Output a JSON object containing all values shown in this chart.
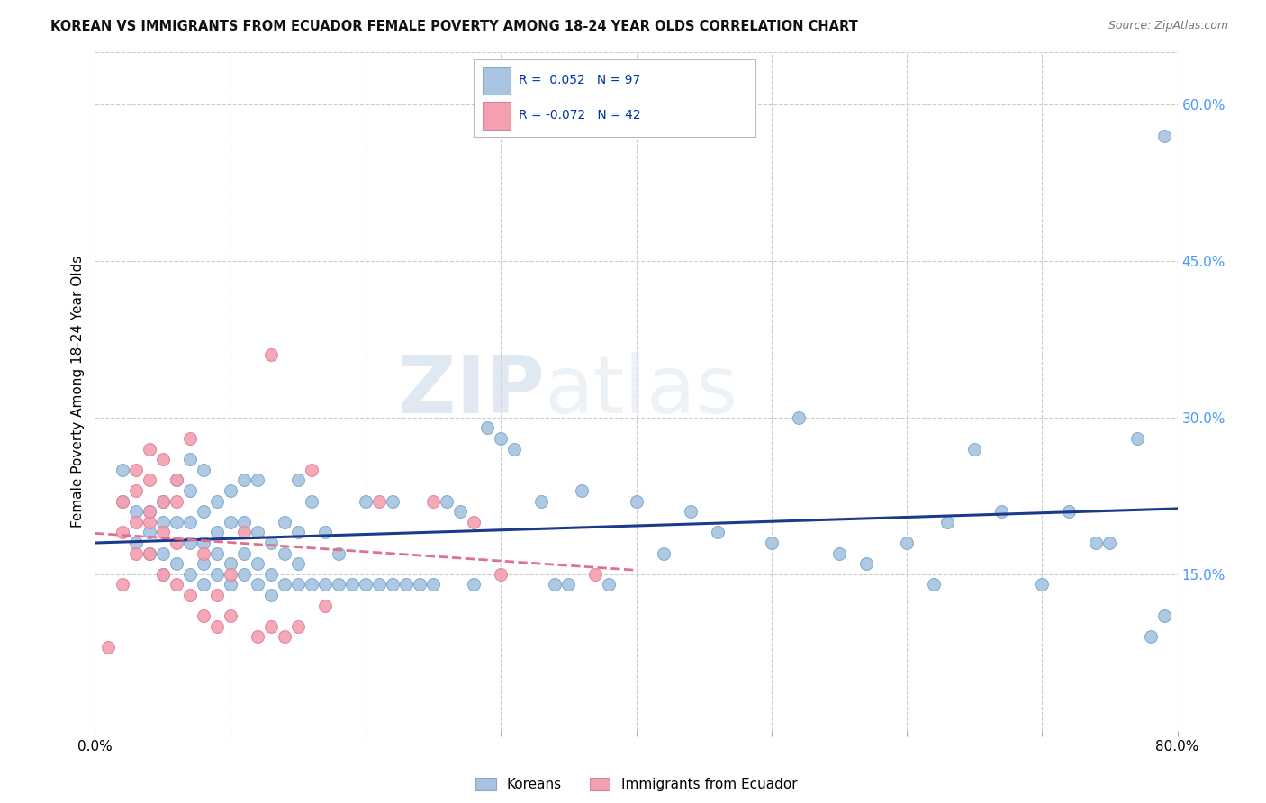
{
  "title": "KOREAN VS IMMIGRANTS FROM ECUADOR FEMALE POVERTY AMONG 18-24 YEAR OLDS CORRELATION CHART",
  "source": "Source: ZipAtlas.com",
  "ylabel": "Female Poverty Among 18-24 Year Olds",
  "xlim": [
    0.0,
    0.8
  ],
  "ylim": [
    0.0,
    0.65
  ],
  "x_tick_positions": [
    0.0,
    0.1,
    0.2,
    0.3,
    0.4,
    0.5,
    0.6,
    0.7,
    0.8
  ],
  "x_tick_labels": [
    "0.0%",
    "",
    "",
    "",
    "",
    "",
    "",
    "",
    "80.0%"
  ],
  "y_ticks_right": [
    0.15,
    0.3,
    0.45,
    0.6
  ],
  "y_tick_labels_right": [
    "15.0%",
    "30.0%",
    "45.0%",
    "60.0%"
  ],
  "legend_label_korean": "Koreans",
  "legend_label_ecuador": "Immigrants from Ecuador",
  "korean_color": "#a8c4e0",
  "ecuador_color": "#f4a0b0",
  "korean_line_color": "#1a3a8a",
  "ecuador_line_color": "#e07090",
  "R_korean": 0.052,
  "N_korean": 97,
  "R_ecuador": -0.072,
  "N_ecuador": 42,
  "watermark_zip": "ZIP",
  "watermark_atlas": "atlas",
  "background_color": "#ffffff",
  "grid_color": "#cccccc",
  "korean_x": [
    0.02,
    0.02,
    0.03,
    0.03,
    0.04,
    0.04,
    0.04,
    0.05,
    0.05,
    0.05,
    0.05,
    0.06,
    0.06,
    0.06,
    0.07,
    0.07,
    0.07,
    0.07,
    0.07,
    0.08,
    0.08,
    0.08,
    0.08,
    0.08,
    0.09,
    0.09,
    0.09,
    0.09,
    0.1,
    0.1,
    0.1,
    0.1,
    0.11,
    0.11,
    0.11,
    0.11,
    0.12,
    0.12,
    0.12,
    0.12,
    0.13,
    0.13,
    0.13,
    0.14,
    0.14,
    0.14,
    0.15,
    0.15,
    0.15,
    0.15,
    0.16,
    0.16,
    0.17,
    0.17,
    0.18,
    0.18,
    0.19,
    0.2,
    0.2,
    0.21,
    0.22,
    0.22,
    0.23,
    0.24,
    0.25,
    0.26,
    0.27,
    0.28,
    0.29,
    0.3,
    0.31,
    0.33,
    0.34,
    0.35,
    0.36,
    0.38,
    0.4,
    0.42,
    0.44,
    0.46,
    0.5,
    0.52,
    0.55,
    0.57,
    0.6,
    0.62,
    0.63,
    0.65,
    0.67,
    0.7,
    0.72,
    0.74,
    0.75,
    0.77,
    0.78,
    0.79,
    0.79
  ],
  "korean_y": [
    0.22,
    0.25,
    0.18,
    0.21,
    0.17,
    0.19,
    0.21,
    0.15,
    0.22,
    0.17,
    0.2,
    0.16,
    0.2,
    0.24,
    0.15,
    0.18,
    0.2,
    0.23,
    0.26,
    0.14,
    0.16,
    0.18,
    0.21,
    0.25,
    0.15,
    0.17,
    0.19,
    0.22,
    0.14,
    0.16,
    0.2,
    0.23,
    0.15,
    0.17,
    0.2,
    0.24,
    0.14,
    0.16,
    0.19,
    0.24,
    0.13,
    0.15,
    0.18,
    0.14,
    0.17,
    0.2,
    0.14,
    0.16,
    0.19,
    0.24,
    0.14,
    0.22,
    0.14,
    0.19,
    0.14,
    0.17,
    0.14,
    0.14,
    0.22,
    0.14,
    0.14,
    0.22,
    0.14,
    0.14,
    0.14,
    0.22,
    0.21,
    0.14,
    0.29,
    0.28,
    0.27,
    0.22,
    0.14,
    0.14,
    0.23,
    0.14,
    0.22,
    0.17,
    0.21,
    0.19,
    0.18,
    0.3,
    0.17,
    0.16,
    0.18,
    0.14,
    0.2,
    0.27,
    0.21,
    0.14,
    0.21,
    0.18,
    0.18,
    0.28,
    0.09,
    0.11,
    0.57
  ],
  "ecuador_x": [
    0.01,
    0.02,
    0.02,
    0.02,
    0.03,
    0.03,
    0.03,
    0.03,
    0.04,
    0.04,
    0.04,
    0.04,
    0.04,
    0.05,
    0.05,
    0.05,
    0.05,
    0.06,
    0.06,
    0.06,
    0.06,
    0.07,
    0.07,
    0.08,
    0.08,
    0.09,
    0.09,
    0.1,
    0.1,
    0.11,
    0.12,
    0.13,
    0.13,
    0.14,
    0.15,
    0.16,
    0.17,
    0.21,
    0.25,
    0.28,
    0.3,
    0.37
  ],
  "ecuador_y": [
    0.08,
    0.22,
    0.19,
    0.14,
    0.2,
    0.23,
    0.17,
    0.25,
    0.17,
    0.2,
    0.24,
    0.21,
    0.27,
    0.15,
    0.19,
    0.22,
    0.26,
    0.14,
    0.18,
    0.22,
    0.24,
    0.13,
    0.28,
    0.11,
    0.17,
    0.1,
    0.13,
    0.11,
    0.15,
    0.19,
    0.09,
    0.1,
    0.36,
    0.09,
    0.1,
    0.25,
    0.12,
    0.22,
    0.22,
    0.2,
    0.15,
    0.15
  ]
}
